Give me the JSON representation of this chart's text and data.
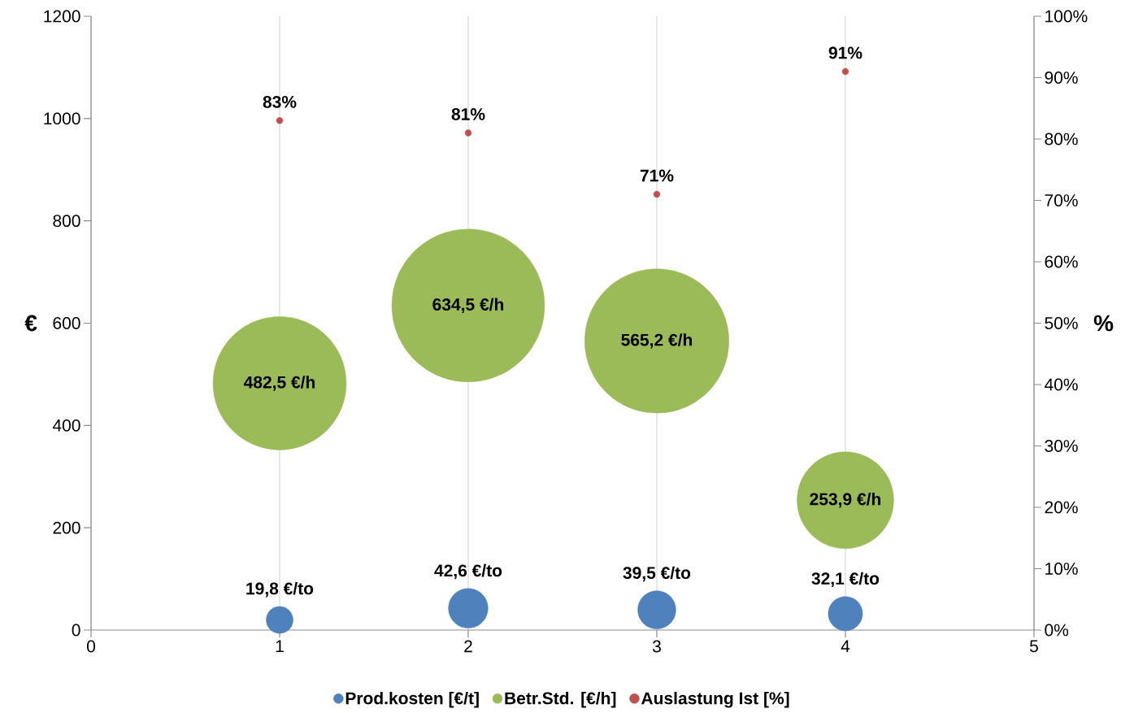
{
  "chart_data": {
    "type": "bubble",
    "xlim": [
      0,
      5
    ],
    "xticks": [
      0,
      1,
      2,
      3,
      4,
      5
    ],
    "ylim": [
      0,
      1200
    ],
    "yticks": [
      0,
      200,
      400,
      600,
      800,
      1000,
      1200
    ],
    "ylabel": "€",
    "y2label": "%",
    "y2lim": [
      0,
      100
    ],
    "y2ticks": [
      {
        "value": 0,
        "label": "0%"
      },
      {
        "value": 10,
        "label": "10%"
      },
      {
        "value": 20,
        "label": "20%"
      },
      {
        "value": 30,
        "label": "30%"
      },
      {
        "value": 40,
        "label": "40%"
      },
      {
        "value": 50,
        "label": "50%"
      },
      {
        "value": 60,
        "label": "60%"
      },
      {
        "value": 70,
        "label": "70%"
      },
      {
        "value": 80,
        "label": "80%"
      },
      {
        "value": 90,
        "label": "90%"
      },
      {
        "value": 100,
        "label": "100%"
      }
    ],
    "grid": "x",
    "legend": "bottom",
    "series": [
      {
        "name": "Prod.kosten [€/t]",
        "color": "#4f81bd",
        "x": [
          1,
          2,
          3,
          4
        ],
        "values": [
          19.8,
          42.6,
          39.5,
          32.1
        ],
        "sizes": [
          0.0312,
          0.0671,
          0.0623,
          0.0506
        ],
        "value_labels": [
          "19,8 €/to",
          "42,6 €/to",
          "39,5 €/to",
          "32,1 €/to"
        ]
      },
      {
        "name": "Betr.Std. [€/h]",
        "color": "#9bbb59",
        "x": [
          1,
          2,
          3,
          4
        ],
        "values": [
          482.5,
          634.5,
          565.2,
          253.9
        ],
        "sizes": [
          0.7605,
          1,
          0.8908,
          0.4002
        ],
        "value_labels": [
          "482,5 €/h",
          "634,5 €/h",
          "565,2 €/h",
          "253,9 €/h"
        ]
      },
      {
        "name": "Auslastung Ist [%]",
        "type": "scatter",
        "axis": "y2",
        "marker": "circle",
        "color": "#c0504d",
        "x": [
          1,
          2,
          3,
          4
        ],
        "values": [
          83,
          81,
          71,
          91
        ],
        "value_labels": [
          "83%",
          "81%",
          "71%",
          "91%"
        ]
      }
    ]
  }
}
